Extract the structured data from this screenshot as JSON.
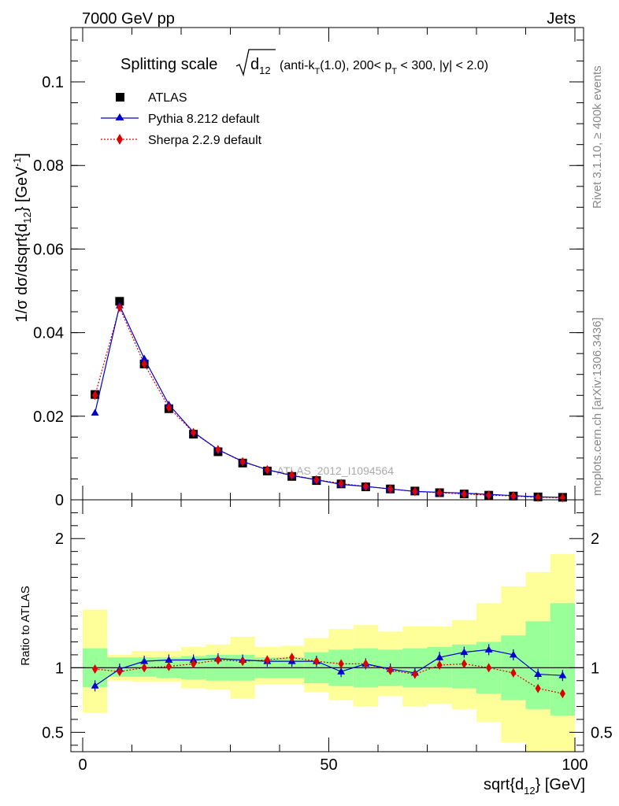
{
  "header": {
    "process": "7000 GeV pp",
    "category": "Jets"
  },
  "side_labels": {
    "rivet": "Rivet 3.1.10, ≥ 400k events",
    "mcplots": "mcplots.cern.ch [arXiv:1306.3436]"
  },
  "watermark": "ATLAS_2012_I1094564",
  "title": {
    "main": "Splitting scale",
    "var": "d",
    "var_sub": "12",
    "cut_a": "(anti-k",
    "cut_a_sub": "T",
    "cut_b": "(1.0), 200< p",
    "cut_b_sub": "T",
    "cut_c": " < 300, |y| < 2.0)"
  },
  "axes": {
    "ylabel_main": "1/σ dσ/dsqrt{d",
    "ylabel_main_sub": "12",
    "ylabel_main_mid": "} [GeV",
    "ylabel_main_sup": "-1",
    "ylabel_main_end": "]",
    "ylabel_ratio": "Ratio to ATLAS",
    "xlabel": "sqrt{d",
    "xlabel_sub": "12",
    "xlabel_end": "} [GeV]"
  },
  "colors": {
    "data": "#000000",
    "pythia": "#0000cc",
    "sherpa": "#dd0000",
    "band_inner": "#99ff99",
    "band_outer": "#ffff99"
  },
  "chart_data": [
    {
      "type": "scatter",
      "panel": "main",
      "xlim": [
        0,
        100
      ],
      "ylim": [
        0,
        0.113
      ],
      "yticks": [
        0,
        0.02,
        0.04,
        0.06,
        0.08,
        0.1
      ],
      "ytick_labels": [
        "0",
        "0.02",
        "0.04",
        "0.06",
        "0.08",
        "0.1"
      ],
      "x": [
        2.5,
        7.5,
        12.5,
        17.5,
        22.5,
        27.5,
        32.5,
        37.5,
        42.5,
        47.5,
        52.5,
        57.5,
        62.5,
        67.5,
        72.5,
        77.5,
        82.5,
        87.5,
        92.5,
        97.5
      ],
      "legend": [
        "ATLAS",
        "Pythia 8.212 default",
        "Sherpa 2.2.9 default"
      ],
      "series": [
        {
          "name": "ATLAS",
          "style": "square",
          "values": [
            0.0252,
            0.0475,
            0.0325,
            0.0218,
            0.0157,
            0.0115,
            0.0088,
            0.0069,
            0.0056,
            0.0046,
            0.0038,
            0.0031,
            0.0026,
            0.0021,
            0.0017,
            0.0014,
            0.0011,
            0.0009,
            0.0007,
            0.0006
          ]
        },
        {
          "name": "Pythia 8.212 default",
          "style": "triangle-line",
          "values": [
            0.0208,
            0.0465,
            0.0338,
            0.0228,
            0.0162,
            0.012,
            0.0092,
            0.0072,
            0.0058,
            0.0048,
            0.0037,
            0.0032,
            0.0026,
            0.002,
            0.0018,
            0.0016,
            0.0013,
            0.001,
            0.0007,
            0.0006
          ]
        },
        {
          "name": "Sherpa 2.2.9 default",
          "style": "diamond-dotted",
          "values": [
            0.025,
            0.046,
            0.0325,
            0.0221,
            0.0161,
            0.012,
            0.0091,
            0.0072,
            0.0059,
            0.0048,
            0.0039,
            0.0032,
            0.0026,
            0.002,
            0.0017,
            0.0014,
            0.0011,
            0.0009,
            0.0006,
            0.0005
          ]
        }
      ]
    },
    {
      "type": "scatter",
      "panel": "ratio",
      "xlim": [
        0,
        100
      ],
      "ylim": [
        0.35,
        2.3
      ],
      "yticks": [
        0.5,
        1,
        2
      ],
      "ytick_labels": [
        "0.5",
        "1",
        "2"
      ],
      "xticks": [
        0,
        50,
        100
      ],
      "xtick_labels": [
        "0",
        "50",
        "100"
      ],
      "bins": [
        [
          0,
          5
        ],
        [
          5,
          10
        ],
        [
          10,
          15
        ],
        [
          15,
          20
        ],
        [
          20,
          25
        ],
        [
          25,
          30
        ],
        [
          30,
          35
        ],
        [
          35,
          40
        ],
        [
          40,
          45
        ],
        [
          45,
          50
        ],
        [
          50,
          55
        ],
        [
          55,
          60
        ],
        [
          60,
          65
        ],
        [
          65,
          70
        ],
        [
          70,
          75
        ],
        [
          75,
          80
        ],
        [
          80,
          85
        ],
        [
          85,
          90
        ],
        [
          90,
          95
        ],
        [
          95,
          100
        ]
      ],
      "x": [
        2.5,
        7.5,
        12.5,
        17.5,
        22.5,
        27.5,
        32.5,
        37.5,
        42.5,
        47.5,
        52.5,
        57.5,
        62.5,
        67.5,
        72.5,
        77.5,
        82.5,
        87.5,
        92.5,
        97.5
      ],
      "band_inner_lo": [
        0.85,
        0.93,
        0.93,
        0.92,
        0.91,
        0.9,
        0.9,
        0.92,
        0.92,
        0.88,
        0.86,
        0.85,
        0.86,
        0.85,
        0.85,
        0.84,
        0.8,
        0.75,
        0.68,
        0.63
      ],
      "band_inner_hi": [
        1.15,
        1.08,
        1.08,
        1.08,
        1.09,
        1.1,
        1.1,
        1.08,
        1.08,
        1.12,
        1.14,
        1.15,
        1.14,
        1.15,
        1.16,
        1.18,
        1.2,
        1.25,
        1.36,
        1.5
      ],
      "band_outer_lo": [
        0.65,
        0.9,
        0.89,
        0.89,
        0.84,
        0.83,
        0.76,
        0.87,
        0.87,
        0.81,
        0.75,
        0.7,
        0.78,
        0.7,
        0.72,
        0.68,
        0.58,
        0.42,
        0.35,
        0.35
      ],
      "band_outer_hi": [
        1.45,
        1.1,
        1.13,
        1.13,
        1.16,
        1.18,
        1.24,
        1.16,
        1.17,
        1.23,
        1.3,
        1.33,
        1.28,
        1.32,
        1.32,
        1.37,
        1.5,
        1.63,
        1.74,
        1.88
      ],
      "series": [
        {
          "name": "Pythia 8.212 default",
          "style": "triangle-line",
          "values": [
            0.86,
            0.99,
            1.05,
            1.06,
            1.06,
            1.07,
            1.06,
            1.05,
            1.05,
            1.05,
            0.97,
            1.03,
            0.99,
            0.96,
            1.08,
            1.12,
            1.14,
            1.1,
            0.95,
            0.94
          ]
        },
        {
          "name": "Sherpa 2.2.9 default",
          "style": "diamond-dotted",
          "values": [
            0.99,
            0.97,
            1.0,
            1.01,
            1.03,
            1.06,
            1.05,
            1.06,
            1.08,
            1.05,
            1.03,
            1.03,
            0.98,
            0.95,
            1.02,
            1.03,
            1.0,
            0.96,
            0.84,
            0.8
          ]
        }
      ]
    }
  ]
}
